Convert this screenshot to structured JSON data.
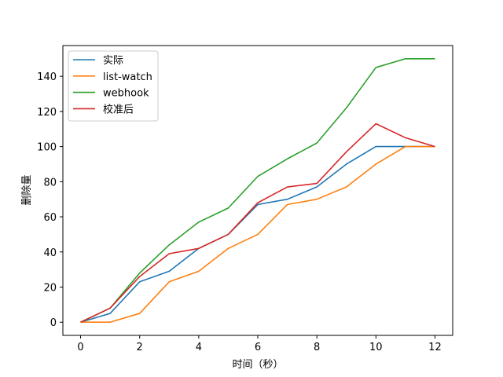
{
  "chart_data": {
    "type": "line",
    "title": "",
    "xlabel": "时间（秒）",
    "ylabel": "删除量",
    "xlim": [
      -0.6,
      12.6
    ],
    "ylim": [
      -7.5,
      157.5
    ],
    "xticks": [
      0,
      2,
      4,
      6,
      8,
      10,
      12
    ],
    "yticks": [
      0,
      20,
      40,
      60,
      80,
      100,
      120,
      140
    ],
    "grid": false,
    "legend": "top-left",
    "x": [
      0,
      1,
      2,
      3,
      4,
      5,
      6,
      7,
      8,
      9,
      10,
      11,
      12
    ],
    "series": [
      {
        "name": "实际",
        "color": "#1f77b4",
        "values": [
          0,
          5,
          23,
          29,
          42,
          50,
          67,
          70,
          77,
          90,
          100,
          100,
          100
        ]
      },
      {
        "name": "list-watch",
        "color": "#ff7f0e",
        "values": [
          0,
          0,
          5,
          23,
          29,
          42,
          50,
          67,
          70,
          77,
          90,
          100,
          100
        ]
      },
      {
        "name": "webhook",
        "color": "#2ca02c",
        "values": [
          0,
          8,
          28,
          44,
          57,
          65,
          83,
          93,
          102,
          122,
          145,
          150,
          150
        ]
      },
      {
        "name": "校准后",
        "color": "#d62728",
        "values": [
          0,
          8,
          26,
          39,
          42,
          50,
          68,
          77,
          79,
          97,
          113,
          105,
          100
        ]
      }
    ]
  }
}
